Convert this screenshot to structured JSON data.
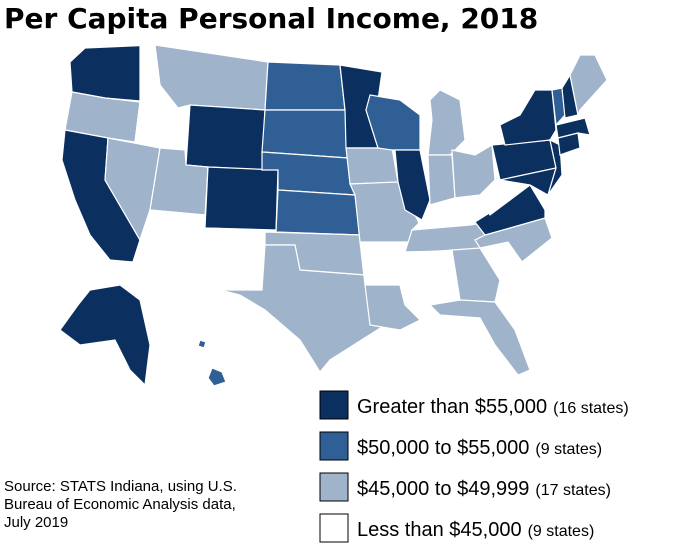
{
  "title": "Per Capita Personal Income, 2018",
  "legend": [
    {
      "label": "Greater than $55,000",
      "count": "(16 states)",
      "color": "#0b2f5f"
    },
    {
      "label": "$50,000 to $55,000",
      "count": "(9 states)",
      "color": "#2f5f95"
    },
    {
      "label": "$45,000 to $49,999",
      "count": "(17 states)",
      "color": "#9fb3cb"
    },
    {
      "label": "Less than $45,000",
      "count": "(9 states)",
      "color": "#ffffff"
    }
  ],
  "source": [
    "Source: STATS Indiana, using U.S.",
    "Bureau of Economic Analysis data,",
    "July 2019"
  ]
}
